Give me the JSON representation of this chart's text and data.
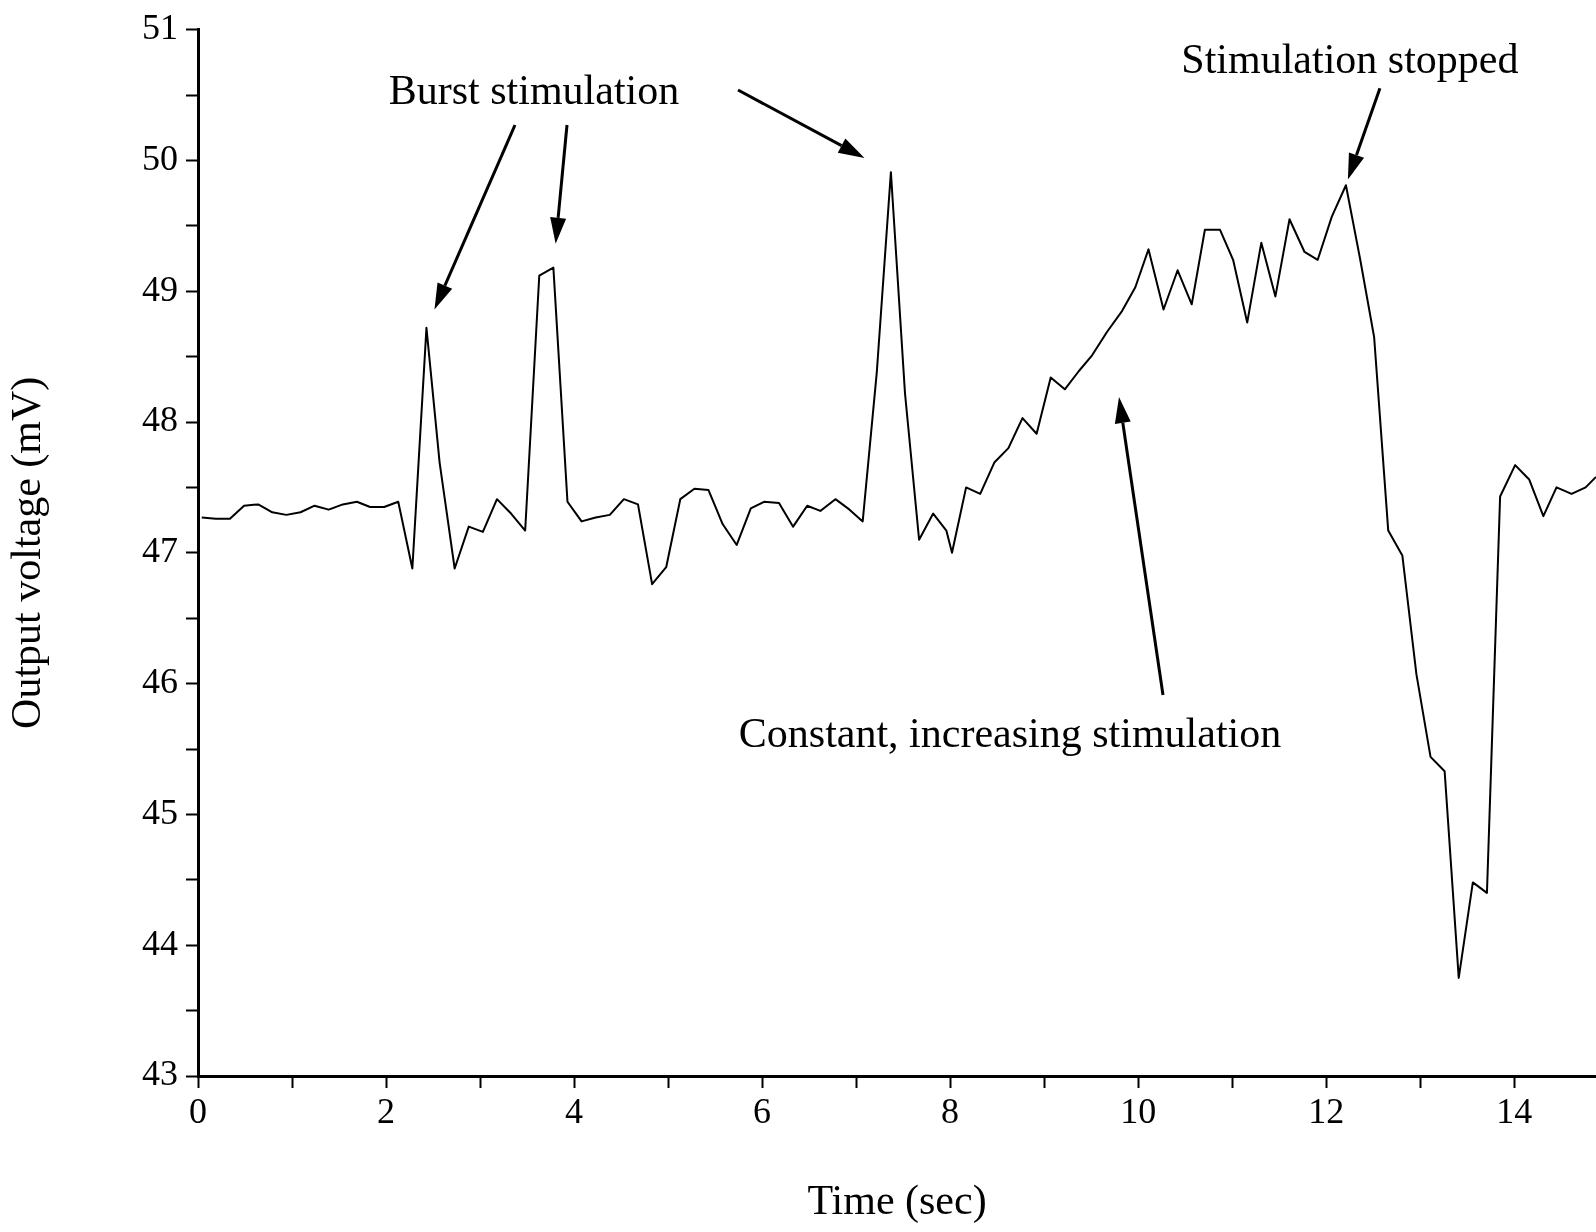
{
  "chart_data": {
    "type": "line",
    "xlabel": "Time (sec)",
    "ylabel": "Output voltage (mV)",
    "x": [
      0.04,
      0.19,
      0.34,
      0.49,
      0.64,
      0.79,
      0.94,
      1.09,
      1.24,
      1.39,
      1.54,
      1.69,
      1.83,
      1.98,
      2.13,
      2.28,
      2.43,
      2.57,
      2.73,
      2.88,
      3.03,
      3.18,
      3.33,
      3.48,
      3.63,
      3.78,
      3.93,
      4.08,
      4.23,
      4.38,
      4.53,
      4.68,
      4.83,
      4.98,
      5.13,
      5.28,
      5.43,
      5.58,
      5.73,
      5.88,
      6.02,
      6.18,
      6.33,
      6.48,
      6.62,
      6.78,
      6.93,
      7.07,
      7.22,
      7.37,
      7.52,
      7.67,
      7.82,
      7.96,
      8.02,
      8.17,
      8.32,
      8.47,
      8.62,
      8.77,
      8.92,
      9.07,
      9.22,
      9.37,
      9.51,
      9.67,
      9.83,
      9.97,
      10.11,
      10.27,
      10.42,
      10.57,
      10.71,
      10.87,
      11.01,
      11.16,
      11.31,
      11.46,
      11.61,
      11.77,
      11.91,
      12.06,
      12.21,
      12.36,
      12.51,
      12.66,
      12.81,
      12.96,
      13.11,
      13.26,
      13.41,
      13.56,
      13.71,
      13.85,
      14.01,
      14.16,
      14.31,
      14.45,
      14.61,
      14.76,
      14.87
    ],
    "series": [
      {
        "color": "#000000",
        "values": [
          47.27,
          47.26,
          47.26,
          47.36,
          47.37,
          47.31,
          47.29,
          47.31,
          47.36,
          47.33,
          47.37,
          47.39,
          47.35,
          47.35,
          47.39,
          46.88,
          48.72,
          47.69,
          46.88,
          47.2,
          47.16,
          47.41,
          47.3,
          47.17,
          49.12,
          49.18,
          47.39,
          47.24,
          47.27,
          47.29,
          47.41,
          47.37,
          46.76,
          46.89,
          47.41,
          47.49,
          47.48,
          47.22,
          47.06,
          47.34,
          47.39,
          47.38,
          47.2,
          47.36,
          47.32,
          47.41,
          47.33,
          47.24,
          48.38,
          49.91,
          48.22,
          47.1,
          47.3,
          47.17,
          47.0,
          47.5,
          47.45,
          47.69,
          47.8,
          48.03,
          47.91,
          48.34,
          48.25,
          48.39,
          48.51,
          48.69,
          48.85,
          49.03,
          49.32,
          48.86,
          49.16,
          48.9,
          49.47,
          49.47,
          49.24,
          48.76,
          49.37,
          48.96,
          49.55,
          49.3,
          49.24,
          49.57,
          49.81,
          49.25,
          48.65,
          47.17,
          46.98,
          46.07,
          45.44,
          45.33,
          43.75,
          44.48,
          44.4,
          47.43,
          47.67,
          47.56,
          47.28,
          47.5,
          47.45,
          47.5,
          47.58
        ]
      }
    ],
    "xlim": [
      0,
      14.87
    ],
    "xticks": [
      0,
      {
        "value": 1,
        "label": null
      },
      2,
      {
        "value": 3,
        "label": null
      },
      4,
      {
        "value": 5,
        "label": null
      },
      6,
      {
        "value": 7,
        "label": null
      },
      8,
      {
        "value": 9,
        "label": null
      },
      10,
      {
        "value": 11,
        "label": null
      },
      12,
      {
        "value": 13,
        "label": null
      },
      14
    ],
    "ylim": [
      43,
      51
    ],
    "yticks": [
      43,
      {
        "value": 43.5,
        "label": null
      },
      44,
      {
        "value": 44.5,
        "label": null
      },
      45,
      {
        "value": 45.5,
        "label": null
      },
      46,
      {
        "value": 46.5,
        "label": null
      },
      47,
      {
        "value": 47.5,
        "label": null
      },
      48,
      {
        "value": 48.5,
        "label": null
      },
      49,
      {
        "value": 49.5,
        "label": null
      },
      50,
      {
        "value": 50.5,
        "label": null
      },
      51
    ],
    "grid": false,
    "legend": false,
    "marker": "none",
    "line_style": "solid",
    "annotations": [
      "Burst stimulation",
      {
        "text": "Stimulation stopped",
        "x": 12.21,
        "y": 49.81
      },
      "Constant, increasing stimulation"
    ]
  }
}
